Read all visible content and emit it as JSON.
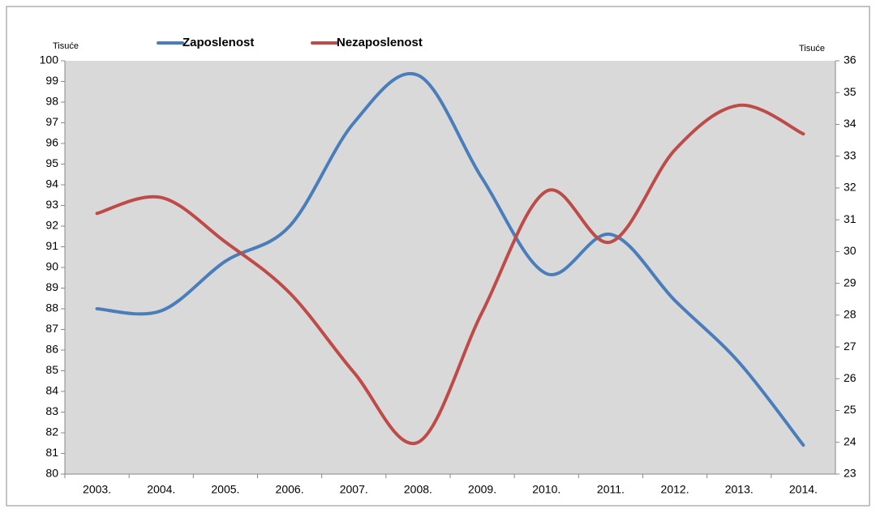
{
  "chart_data": {
    "type": "line",
    "left_unit": "Tisuće",
    "right_unit": "Tisuće",
    "categories": [
      "2003.",
      "2004.",
      "2005.",
      "2006.",
      "2007.",
      "2008.",
      "2009.",
      "2010.",
      "2011.",
      "2012.",
      "2013.",
      "2014."
    ],
    "series": [
      {
        "name": "Zaposlenost",
        "color": "#4a7ebb",
        "values": [
          88.0,
          87.9,
          90.3,
          92.0,
          97.0,
          99.3,
          94.3,
          89.7,
          91.6,
          88.4,
          85.4,
          81.4
        ]
      },
      {
        "name": "Nezaposlenost",
        "color": "#be4b48",
        "axis": "y2",
        "values": [
          31.2,
          31.7,
          30.3,
          28.7,
          26.2,
          24.0,
          28.1,
          31.9,
          30.3,
          33.2,
          34.6,
          33.7
        ]
      }
    ],
    "ylim": [
      80,
      100
    ],
    "yticks": [
      80,
      81,
      82,
      83,
      84,
      85,
      86,
      87,
      88,
      89,
      90,
      91,
      92,
      93,
      94,
      95,
      96,
      97,
      98,
      99,
      100
    ],
    "y2lim": [
      23,
      36
    ],
    "y2ticks": [
      23,
      24,
      25,
      26,
      27,
      28,
      29,
      30,
      31,
      32,
      33,
      34,
      35,
      36
    ],
    "smooth": true
  }
}
